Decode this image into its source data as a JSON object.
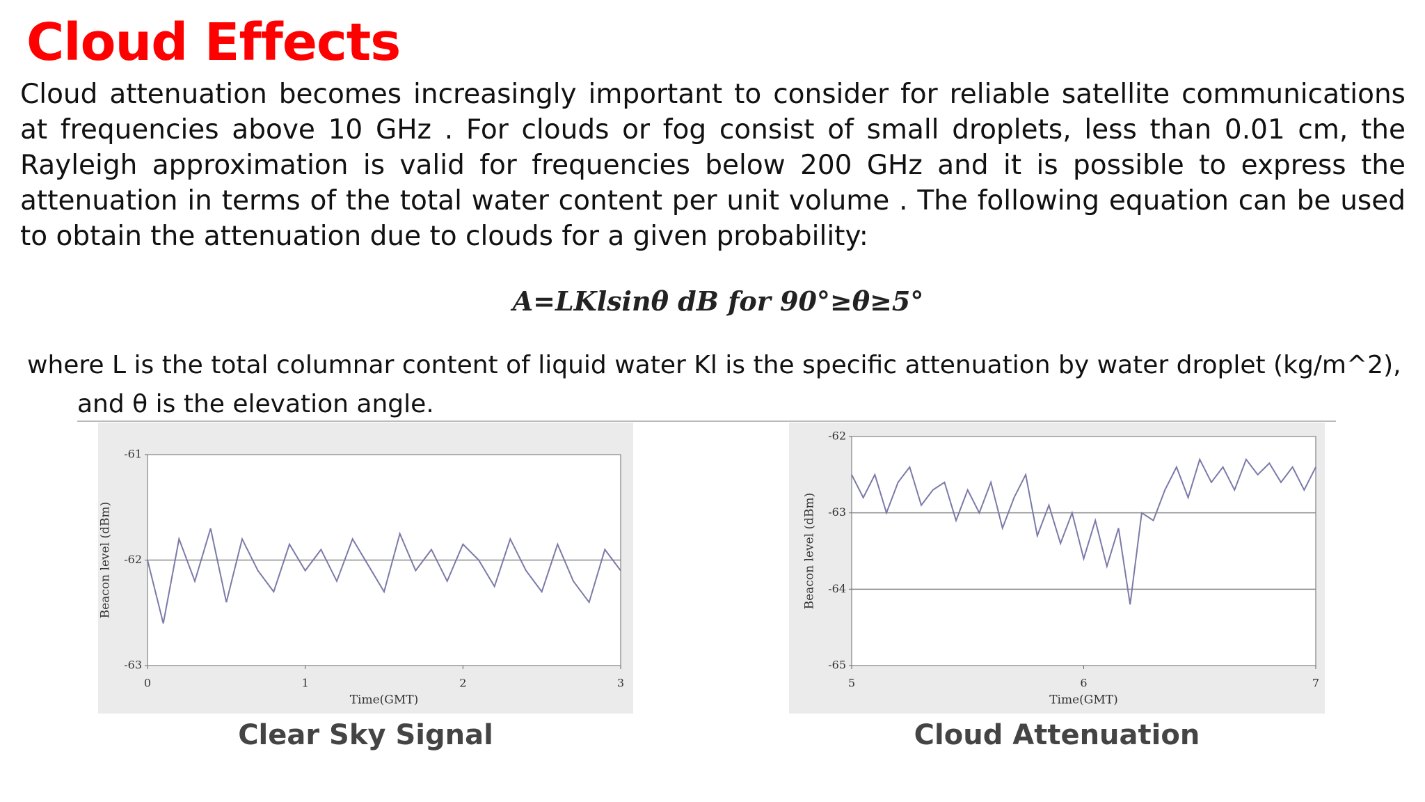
{
  "title": "Cloud Effects",
  "paragraph": "Cloud attenuation becomes increasingly important to consider for  reliable satellite communications at frequencies above 10 GHz .  For clouds or fog consist of small droplets, less than 0.01 cm, the  Rayleigh approximation is valid for frequencies below 200 GHz  and it is possible to express the attenuation in terms of the total   water content per unit volume . The following equation can be  used to obtain the attenuation due to clouds for a given  probability:",
  "equation": "A=LKlsinθ   dB for 90°≥θ≥5°",
  "where": "where L is the total columnar content of liquid water  Kl is the specific attenuation by water droplet (kg/m^2), and θ is the elevation angle.",
  "chart_data": [
    {
      "type": "line",
      "title": "Clear Sky Signal",
      "x_label": "Time(GMT)",
      "y_label": "Beacon level (dBm)",
      "xlim": [
        0,
        3
      ],
      "xticks": [
        0,
        1,
        2,
        3
      ],
      "ylim": [
        -63,
        -61
      ],
      "yticks": [
        -61,
        -62,
        -63
      ],
      "grid_y": [
        -62
      ],
      "color": "#7a7aa8",
      "x": [
        0,
        0.1,
        0.2,
        0.3,
        0.4,
        0.5,
        0.6,
        0.7,
        0.8,
        0.9,
        1,
        1.1,
        1.2,
        1.3,
        1.4,
        1.5,
        1.6,
        1.7,
        1.8,
        1.9,
        2,
        2.1,
        2.2,
        2.3,
        2.4,
        2.5,
        2.6,
        2.7,
        2.8,
        2.9,
        3
      ],
      "values": [
        -62.0,
        -62.6,
        -61.8,
        -62.2,
        -61.7,
        -62.4,
        -61.8,
        -62.1,
        -62.3,
        -61.85,
        -62.1,
        -61.9,
        -62.2,
        -61.8,
        -62.05,
        -62.3,
        -61.75,
        -62.1,
        -61.9,
        -62.2,
        -61.85,
        -62.0,
        -62.25,
        -61.8,
        -62.1,
        -62.3,
        -61.85,
        -62.2,
        -62.4,
        -61.9,
        -62.1
      ]
    },
    {
      "type": "line",
      "title": "Cloud Attenuation",
      "x_label": "Time(GMT)",
      "y_label": "Beacon level (dBm)",
      "xlim": [
        5,
        7
      ],
      "xticks": [
        5,
        6,
        7
      ],
      "ylim": [
        -65,
        -62
      ],
      "yticks": [
        -62,
        -63,
        -64,
        -65
      ],
      "grid_y": [
        -63,
        -64
      ],
      "color": "#7a7aa8",
      "x": [
        5,
        5.05,
        5.1,
        5.15,
        5.2,
        5.25,
        5.3,
        5.35,
        5.4,
        5.45,
        5.5,
        5.55,
        5.6,
        5.65,
        5.7,
        5.75,
        5.8,
        5.85,
        5.9,
        5.95,
        6,
        6.05,
        6.1,
        6.15,
        6.2,
        6.25,
        6.3,
        6.35,
        6.4,
        6.45,
        6.5,
        6.55,
        6.6,
        6.65,
        6.7,
        6.75,
        6.8,
        6.85,
        6.9,
        6.95,
        7
      ],
      "values": [
        -62.5,
        -62.8,
        -62.5,
        -63.0,
        -62.6,
        -62.4,
        -62.9,
        -62.7,
        -62.6,
        -63.1,
        -62.7,
        -63.0,
        -62.6,
        -63.2,
        -62.8,
        -62.5,
        -63.3,
        -62.9,
        -63.4,
        -63.0,
        -63.6,
        -63.1,
        -63.7,
        -63.2,
        -64.2,
        -63.0,
        -63.1,
        -62.7,
        -62.4,
        -62.8,
        -62.3,
        -62.6,
        -62.4,
        -62.7,
        -62.3,
        -62.5,
        -62.35,
        -62.6,
        -62.4,
        -62.7,
        -62.4
      ]
    }
  ]
}
